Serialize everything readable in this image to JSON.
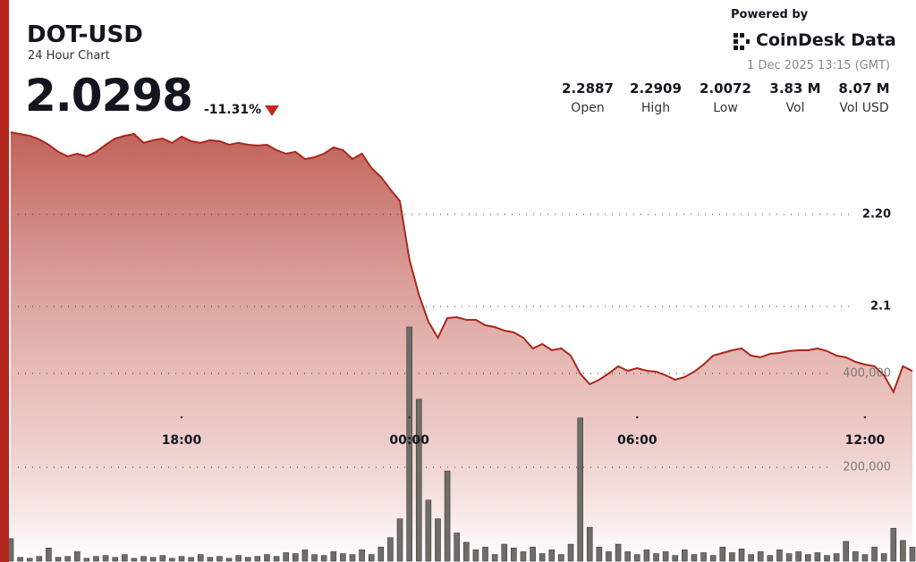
{
  "header": {
    "title": "DOT-USD",
    "subtitle": "24 Hour Chart",
    "price": "2.0298",
    "change": "-11.31%",
    "powered_by": "Powered by",
    "brand": "CoinDesk Data",
    "date": "1 Dec 2025 13:15 (GMT)"
  },
  "stats": [
    {
      "value": "2.2887",
      "label": "Open"
    },
    {
      "value": "2.2909",
      "label": "High"
    },
    {
      "value": "2.0072",
      "label": "Low"
    },
    {
      "value": "3.83 M",
      "label": "Vol"
    },
    {
      "value": "8.07 M",
      "label": "Vol USD"
    }
  ],
  "chart_data": {
    "type": "line",
    "x": [
      "13:30",
      "13:45",
      "14:00",
      "14:15",
      "14:30",
      "14:45",
      "15:00",
      "15:15",
      "15:30",
      "15:45",
      "16:00",
      "16:15",
      "16:30",
      "16:45",
      "17:00",
      "17:15",
      "17:30",
      "17:45",
      "18:00",
      "18:15",
      "18:30",
      "18:45",
      "19:00",
      "19:15",
      "19:30",
      "19:45",
      "20:00",
      "20:15",
      "20:30",
      "20:45",
      "21:00",
      "21:15",
      "21:30",
      "21:45",
      "22:00",
      "22:15",
      "22:30",
      "22:45",
      "23:00",
      "23:15",
      "23:30",
      "23:45",
      "00:00",
      "00:15",
      "00:30",
      "00:45",
      "01:00",
      "01:15",
      "01:30",
      "01:45",
      "02:00",
      "02:15",
      "02:30",
      "02:45",
      "03:00",
      "03:15",
      "03:30",
      "03:45",
      "04:00",
      "04:15",
      "04:30",
      "04:45",
      "05:00",
      "05:15",
      "05:30",
      "05:45",
      "06:00",
      "06:15",
      "06:30",
      "06:45",
      "07:00",
      "07:15",
      "07:30",
      "07:45",
      "08:00",
      "08:15",
      "08:30",
      "08:45",
      "09:00",
      "09:15",
      "09:30",
      "09:45",
      "10:00",
      "10:15",
      "10:30",
      "10:45",
      "11:00",
      "11:15",
      "11:30",
      "11:45",
      "12:00",
      "12:15",
      "12:30",
      "12:45",
      "13:00",
      "13:15"
    ],
    "xticks": [
      "18:00",
      "00:00",
      "06:00",
      "12:00"
    ],
    "series": [
      {
        "color": "#a9271d",
        "values": [
          2.2893,
          2.2874,
          2.2854,
          2.2816,
          2.2757,
          2.268,
          2.2631,
          2.266,
          2.2631,
          2.268,
          2.2757,
          2.2825,
          2.2854,
          2.2874,
          2.2777,
          2.2806,
          2.2825,
          2.2777,
          2.2845,
          2.2796,
          2.2777,
          2.2806,
          2.2796,
          2.2757,
          2.2777,
          2.2757,
          2.2748,
          2.2757,
          2.2699,
          2.266,
          2.268,
          2.2602,
          2.2621,
          2.266,
          2.2728,
          2.2699,
          2.2602,
          2.266,
          2.2505,
          2.2408,
          2.2272,
          2.2146,
          2.1515,
          2.1126,
          2.0835,
          2.066,
          2.0874,
          2.0883,
          2.0854,
          2.0854,
          2.0796,
          2.0777,
          2.0738,
          2.0718,
          2.066,
          2.0544,
          2.0592,
          2.0524,
          2.0544,
          2.0466,
          2.0272,
          2.0155,
          2.0204,
          2.0272,
          2.035,
          2.0301,
          2.033,
          2.0301,
          2.0291,
          2.0252,
          2.0204,
          2.0233,
          2.0291,
          2.0369,
          2.0466,
          2.0495,
          2.0524,
          2.0544,
          2.0466,
          2.0447,
          2.0485,
          2.0495,
          2.0515,
          2.0524,
          2.0524,
          2.0544,
          2.0515,
          2.0466,
          2.0447,
          2.0398,
          2.0369,
          2.035,
          2.0252,
          2.0072,
          2.035,
          2.0298
        ]
      },
      {
        "type": "bar",
        "axis": "y2",
        "color": "#6e6d66",
        "values": [
          48000,
          8000,
          6000,
          10000,
          28000,
          8000,
          10000,
          20000,
          6000,
          10000,
          12000,
          8000,
          14000,
          6000,
          10000,
          8000,
          12000,
          6000,
          10000,
          8000,
          14000,
          8000,
          10000,
          6000,
          12000,
          8000,
          10000,
          14000,
          10000,
          18000,
          16000,
          24000,
          14000,
          12000,
          20000,
          16000,
          14000,
          24000,
          14000,
          30000,
          50000,
          90000,
          499000,
          345000,
          130000,
          90000,
          192000,
          60000,
          40000,
          24000,
          30000,
          14000,
          36000,
          28000,
          20000,
          30000,
          16000,
          24000,
          14000,
          36000,
          305000,
          72000,
          30000,
          20000,
          36000,
          20000,
          14000,
          24000,
          16000,
          20000,
          12000,
          24000,
          14000,
          18000,
          12000,
          30000,
          18000,
          26000,
          14000,
          20000,
          12000,
          24000,
          16000,
          20000,
          14000,
          18000,
          12000,
          16000,
          42000,
          20000,
          14000,
          30000,
          16000,
          70000,
          44000,
          30000
        ]
      }
    ],
    "ylim": [
      1.8233,
      2.2893
    ],
    "yticks": [
      2.1,
      {
        "value": 2.2,
        "label": "2.20"
      }
    ],
    "y2lim": [
      0,
      914000
    ],
    "y2ticks": [
      {
        "value": 200000,
        "label": "200,000"
      },
      {
        "value": 400000,
        "label": "400,000"
      }
    ],
    "grid": true
  }
}
